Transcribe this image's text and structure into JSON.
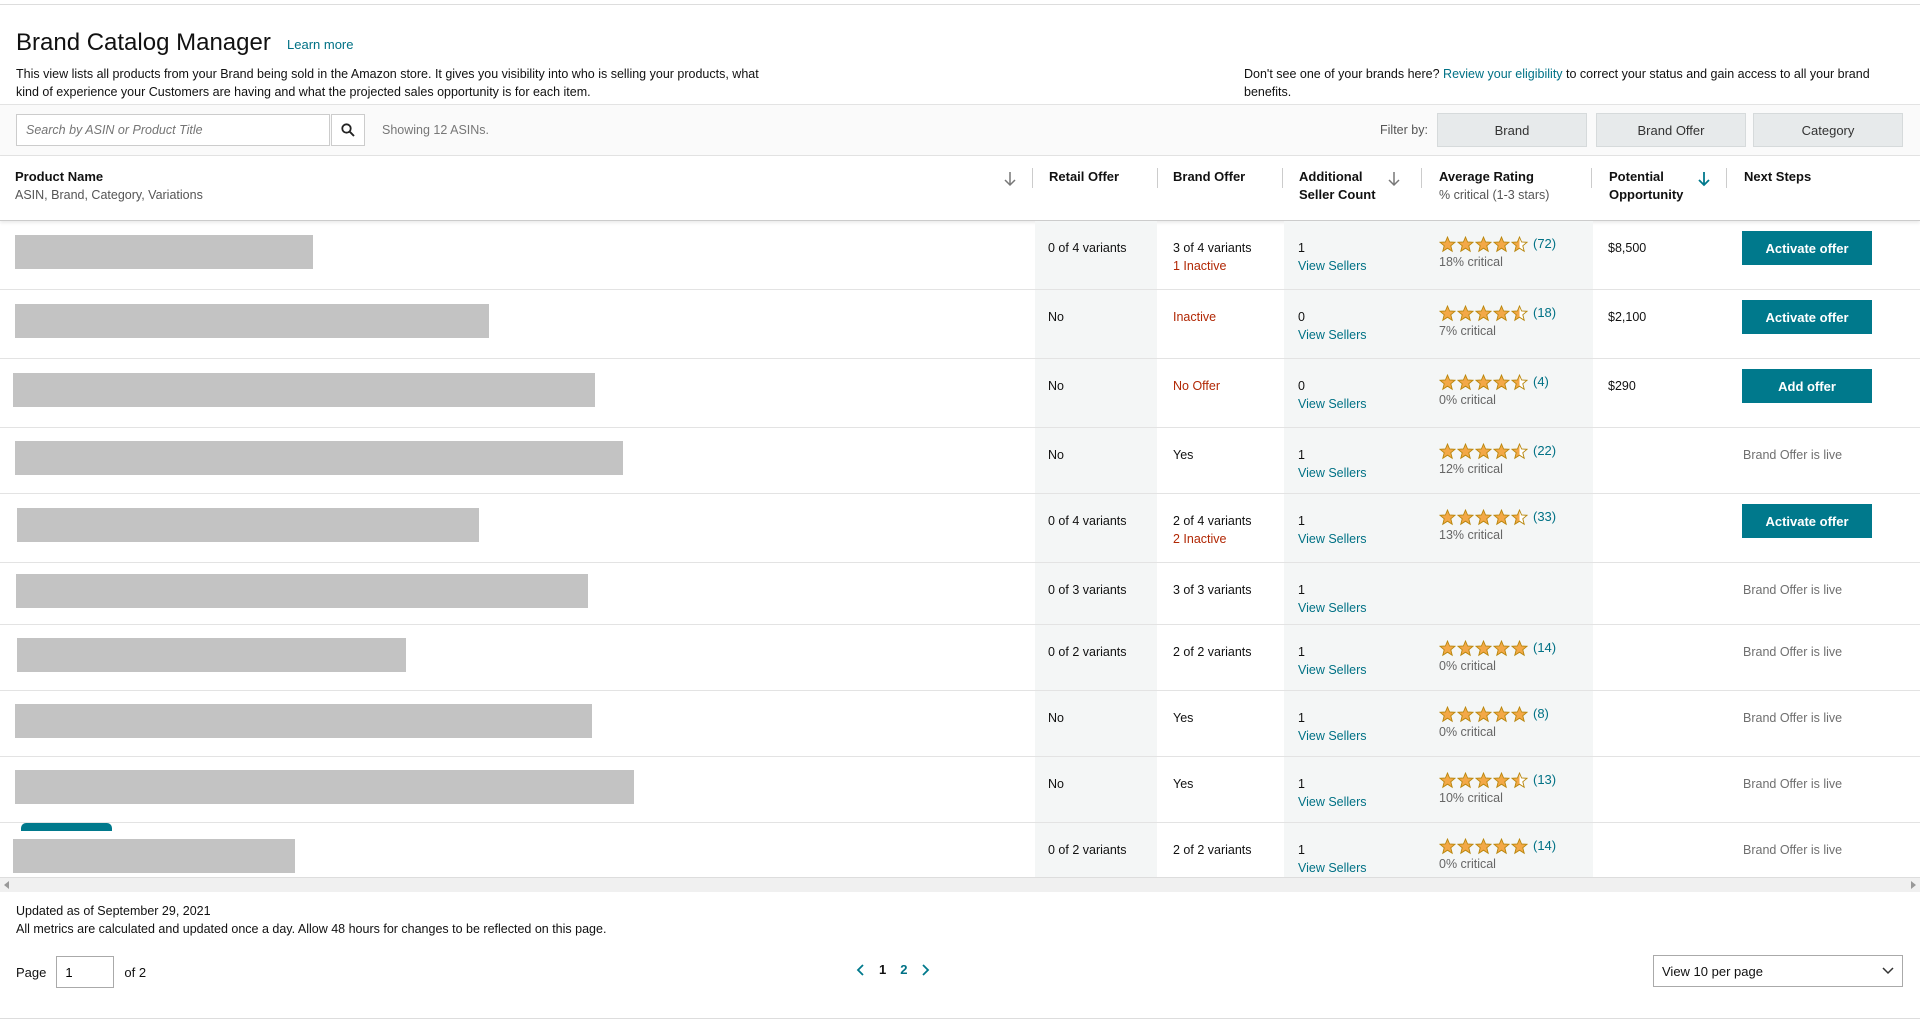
{
  "header": {
    "title": "Brand Catalog Manager",
    "learn_more": "Learn more",
    "description": "This view lists all products from your Brand being sold in the Amazon store. It gives you visibility into who is selling your products, what kind of experience your Customers are having and what the projected sales opportunity is for each item.",
    "eligibility_prefix": "Don't see one of your brands here? ",
    "eligibility_link": "Review your eligibility",
    "eligibility_suffix": " to correct your status and gain access to all your brand benefits."
  },
  "toolbar": {
    "search_placeholder": "Search by ASIN or Product Title",
    "showing": "Showing 12 ASINs.",
    "filter_by": "Filter by:",
    "filters": [
      "Brand",
      "Brand Offer",
      "Category"
    ]
  },
  "columns": {
    "product_name": "Product Name",
    "product_sub": "ASIN, Brand, Category, Variations",
    "retail_offer": "Retail Offer",
    "brand_offer": "Brand Offer",
    "seller_count_1": "Additional",
    "seller_count_2": "Seller Count",
    "avg_rating": "Average Rating",
    "avg_rating_sub": "% critical (1-3 stars)",
    "potential_1": "Potential",
    "potential_2": "Opportunity",
    "next_steps": "Next Steps"
  },
  "rows": [
    {
      "retail": "0 of 4 variants",
      "brand": "3 of 4 variants",
      "brand_sub": "1 Inactive",
      "sellers": "1",
      "view": "View Sellers",
      "stars": 4.5,
      "count": "(72)",
      "critical": "18% critical",
      "opportunity": "$8,500",
      "action": "Activate offer",
      "status": ""
    },
    {
      "retail": "No",
      "brand": "Inactive",
      "brand_sub": "",
      "sellers": "0",
      "view": "View Sellers",
      "stars": 4.5,
      "count": "(18)",
      "critical": "7% critical",
      "opportunity": "$2,100",
      "action": "Activate offer",
      "status": ""
    },
    {
      "retail": "No",
      "brand": "No Offer",
      "brand_sub": "",
      "sellers": "0",
      "view": "View Sellers",
      "stars": 4.5,
      "count": "(4)",
      "critical": "0% critical",
      "opportunity": "$290",
      "action": "Add offer",
      "status": ""
    },
    {
      "retail": "No",
      "brand": "Yes",
      "brand_sub": "",
      "sellers": "1",
      "view": "View Sellers",
      "stars": 4.5,
      "count": "(22)",
      "critical": "12% critical",
      "opportunity": "",
      "action": "",
      "status": "Brand Offer is live"
    },
    {
      "retail": "0 of 4 variants",
      "brand": "2 of 4 variants",
      "brand_sub": "2 Inactive",
      "sellers": "1",
      "view": "View Sellers",
      "stars": 4.5,
      "count": "(33)",
      "critical": "13% critical",
      "opportunity": "",
      "action": "Activate offer",
      "status": ""
    },
    {
      "retail": "0 of 3 variants",
      "brand": "3 of 3 variants",
      "brand_sub": "",
      "sellers": "1",
      "view": "View Sellers",
      "stars": 0,
      "count": "",
      "critical": "",
      "opportunity": "",
      "action": "",
      "status": "Brand Offer is live"
    },
    {
      "retail": "0 of 2 variants",
      "brand": "2 of 2 variants",
      "brand_sub": "",
      "sellers": "1",
      "view": "View Sellers",
      "stars": 5,
      "count": "(14)",
      "critical": "0% critical",
      "opportunity": "",
      "action": "",
      "status": "Brand Offer is live"
    },
    {
      "retail": "No",
      "brand": "Yes",
      "brand_sub": "",
      "sellers": "1",
      "view": "View Sellers",
      "stars": 5,
      "count": "(8)",
      "critical": "0% critical",
      "opportunity": "",
      "action": "",
      "status": "Brand Offer is live"
    },
    {
      "retail": "No",
      "brand": "Yes",
      "brand_sub": "",
      "sellers": "1",
      "view": "View Sellers",
      "stars": 4.5,
      "count": "(13)",
      "critical": "10% critical",
      "opportunity": "",
      "action": "",
      "status": "Brand Offer is live"
    },
    {
      "retail": "0 of 2 variants",
      "brand": "2 of 2 variants",
      "brand_sub": "",
      "sellers": "1",
      "view": "View Sellers",
      "stars": 5,
      "count": "(14)",
      "critical": "0% critical",
      "opportunity": "",
      "action": "",
      "status": "Brand Offer is live"
    }
  ],
  "footer": {
    "updated": "Updated as of September 29, 2021",
    "note": "All metrics are calculated and updated once a day. Allow 48 hours for changes to be reflected on this page.",
    "page_label": "Page",
    "page_value": "1",
    "of_pages": "of 2",
    "pages": [
      "1",
      "2"
    ],
    "per_page": "View 10 per page"
  },
  "colors": {
    "accent": "#00798c",
    "link": "#007185",
    "inactive": "#b12704",
    "star": "#f3a847"
  }
}
